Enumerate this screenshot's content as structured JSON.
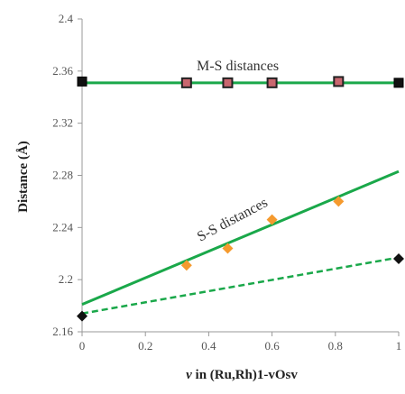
{
  "chart_data": {
    "type": "scatter",
    "xlabel_italic": "v",
    "xlabel_rest": " in (Ru,Rh)1-vOsv",
    "ylabel": "Distance (Å)",
    "xlim": [
      0,
      1
    ],
    "ylim": [
      2.16,
      2.4
    ],
    "xticks": [
      "0",
      "0.2",
      "0.4",
      "0.6",
      "0.8",
      "1"
    ],
    "yticks": [
      "2.16",
      "2.2",
      "2.24",
      "2.28",
      "2.32",
      "2.36",
      "2.4"
    ],
    "grid": false,
    "colors": {
      "fit_line": "#1aa84a",
      "ms_marker_fill": "#c9676f",
      "ss_marker": "#f59a2e",
      "end_marker": "#111111",
      "axis": "#999999"
    },
    "annotations": {
      "ms": "M-S distances",
      "ss": "S-S distances"
    },
    "series": [
      {
        "marker": "square",
        "x": [
          0.33,
          0.46,
          0.6,
          0.81
        ],
        "y": [
          2.351,
          2.351,
          2.351,
          2.352
        ]
      },
      {
        "marker": "square-dark",
        "x": [
          0,
          1
        ],
        "y": [
          2.352,
          2.351
        ]
      },
      {
        "marker": "diamond",
        "x": [
          0.33,
          0.46,
          0.6,
          0.81
        ],
        "y": [
          2.211,
          2.224,
          2.246,
          2.26
        ]
      },
      {
        "marker": "diamond-dark",
        "x": [
          0,
          1
        ],
        "y": [
          2.172,
          2.216
        ]
      }
    ],
    "lines": [
      {
        "style": "solid",
        "x": [
          0,
          1
        ],
        "y": [
          2.351,
          2.351
        ]
      },
      {
        "style": "solid",
        "x": [
          0,
          1
        ],
        "y": [
          2.181,
          2.283
        ]
      },
      {
        "style": "dashed",
        "x": [
          0,
          1
        ],
        "y": [
          2.174,
          2.217
        ]
      }
    ]
  }
}
